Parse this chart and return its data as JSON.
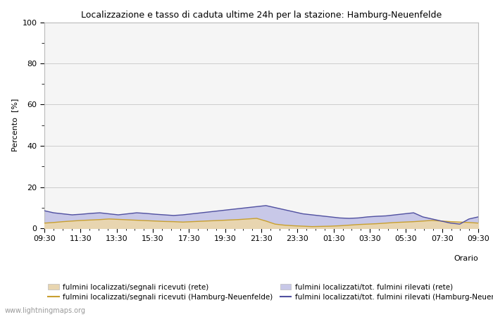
{
  "title": "Localizzazione e tasso di caduta ultime 24h per la stazione: Hamburg-Neuenfelde",
  "ylabel": "Percento  [%]",
  "xlabel_right": "Orario",
  "watermark": "www.lightningmaps.org",
  "ylim": [
    0,
    100
  ],
  "yticks": [
    0,
    20,
    40,
    60,
    80,
    100
  ],
  "yticks_minor": [
    10,
    30,
    50,
    70,
    90
  ],
  "x_labels": [
    "09:30",
    "11:30",
    "13:30",
    "15:30",
    "17:30",
    "19:30",
    "21:30",
    "23:30",
    "01:30",
    "03:30",
    "05:30",
    "07:30",
    "09:30"
  ],
  "fill_rete_color": "#e8d5b0",
  "fill_station_color": "#c8c8e8",
  "line_rete_color": "#c8a030",
  "line_station_color": "#5050a0",
  "bg_color": "#ffffff",
  "plot_bg_color": "#f5f5f5",
  "grid_color": "#cccccc",
  "legend1_label": "fulmini localizzati/segnali ricevuti (rete)",
  "legend2_label": "fulmini localizzati/segnali ricevuti (Hamburg-Neuenfelde)",
  "legend3_label": "fulmini localizzati/tot. fulmini rilevati (rete)",
  "legend4_label": "fulmini localizzati/tot. fulmini rilevati (Hamburg-Neuenfelde)",
  "rete_fill_data": [
    2.5,
    2.8,
    3.2,
    3.5,
    3.8,
    4.0,
    4.2,
    4.5,
    4.3,
    4.1,
    3.9,
    3.7,
    3.5,
    3.3,
    3.2,
    3.0,
    3.2,
    3.4,
    3.6,
    3.8,
    4.0,
    4.2,
    4.5,
    4.8,
    3.5,
    2.0,
    1.5,
    1.2,
    1.0,
    0.8,
    0.9,
    1.0,
    1.2,
    1.5,
    1.8,
    2.0,
    2.2,
    2.5,
    2.8,
    3.0,
    3.2,
    3.5,
    3.8,
    3.5,
    3.2,
    3.0,
    2.8,
    2.5
  ],
  "station_fill_data": [
    8.5,
    7.5,
    7.0,
    6.5,
    6.8,
    7.2,
    7.5,
    7.0,
    6.5,
    7.0,
    7.5,
    7.2,
    6.8,
    6.5,
    6.2,
    6.5,
    7.0,
    7.5,
    8.0,
    8.5,
    9.0,
    9.5,
    10.0,
    10.5,
    11.0,
    10.0,
    9.0,
    8.0,
    7.0,
    6.5,
    6.0,
    5.5,
    5.0,
    4.8,
    5.0,
    5.5,
    5.8,
    6.0,
    6.5,
    7.0,
    7.5,
    5.5,
    4.5,
    3.5,
    2.5,
    2.0,
    4.5,
    5.5
  ],
  "n_points": 48
}
